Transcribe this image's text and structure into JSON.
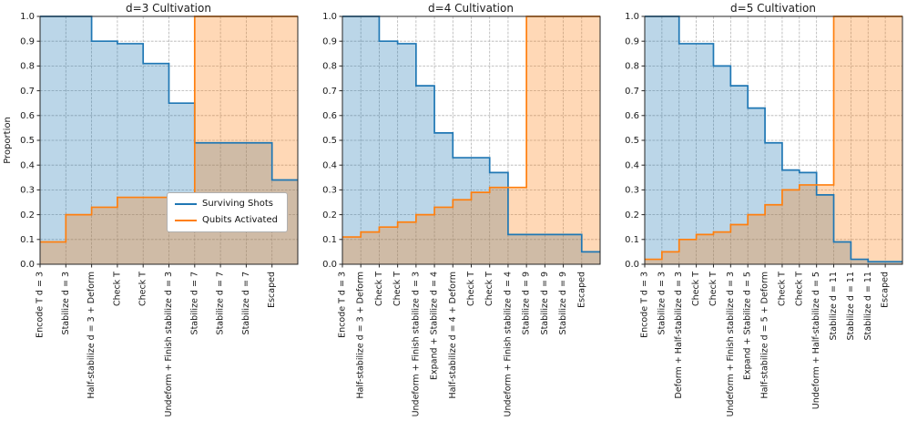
{
  "page": {
    "background": "#ffffff"
  },
  "colors": {
    "surviving": "#1f77b4",
    "activated": "#ff7f0e",
    "axis": "#262626",
    "grid": "#b4b4b4"
  },
  "legend": {
    "items": [
      {
        "label": "Surviving Shots",
        "color_key": "surviving"
      },
      {
        "label": "Qubits Activated",
        "color_key": "activated"
      }
    ],
    "location": "inside first panel, lower right"
  },
  "chart_data": [
    {
      "type": "area",
      "subtype": "step-post",
      "title": "d=3 Cultivation",
      "ylabel": "Proportion",
      "xlabel": "",
      "ylim": [
        0.0,
        1.0
      ],
      "yticks": [
        0.0,
        0.1,
        0.2,
        0.3,
        0.4,
        0.5,
        0.6,
        0.7,
        0.8,
        0.9,
        1.0
      ],
      "grid": true,
      "categories": [
        "Encode T d = 3",
        "Stabilize d = 3",
        "Half-stabilize d = 3 + Deform",
        "Check T",
        "Check T",
        "Undeform + Finish stabilize d = 3",
        "Stabilize d = 7",
        "Stabilize d = 7",
        "Stabilize d = 7",
        "Escaped"
      ],
      "series": [
        {
          "name": "Surviving Shots",
          "values": [
            1.0,
            1.0,
            0.9,
            0.89,
            0.81,
            0.65,
            0.49,
            0.49,
            0.49,
            0.34
          ]
        },
        {
          "name": "Qubits Activated",
          "values": [
            0.09,
            0.2,
            0.23,
            0.27,
            0.27,
            0.27,
            1.0,
            1.0,
            1.0,
            1.0
          ]
        }
      ]
    },
    {
      "type": "area",
      "subtype": "step-post",
      "title": "d=4 Cultivation",
      "ylabel": "",
      "xlabel": "",
      "ylim": [
        0.0,
        1.0
      ],
      "yticks": [
        0.0,
        0.1,
        0.2,
        0.3,
        0.4,
        0.5,
        0.6,
        0.7,
        0.8,
        0.9,
        1.0
      ],
      "grid": true,
      "categories": [
        "Encode T d = 3",
        "Half-stabilize d = 3 + Deform",
        "Check T",
        "Check T",
        "Undeform + Finish stabilize d = 3",
        "Expand + Stabilize d = 4",
        "Half-stabilize d = 4 + Deform",
        "Check T",
        "Check T",
        "Undeform + Finish stabilize d = 4",
        "Stabilize d = 9",
        "Stabilize d = 9",
        "Stabilize d = 9",
        "Escaped"
      ],
      "series": [
        {
          "name": "Surviving Shots",
          "values": [
            1.0,
            1.0,
            0.9,
            0.89,
            0.72,
            0.53,
            0.43,
            0.43,
            0.37,
            0.12,
            0.12,
            0.12,
            0.12,
            0.05
          ]
        },
        {
          "name": "Qubits Activated",
          "values": [
            0.11,
            0.13,
            0.15,
            0.17,
            0.2,
            0.23,
            0.26,
            0.29,
            0.31,
            0.31,
            1.0,
            1.0,
            1.0,
            1.0
          ]
        }
      ]
    },
    {
      "type": "area",
      "subtype": "step-post",
      "title": "d=5 Cultivation",
      "ylabel": "",
      "xlabel": "",
      "ylim": [
        0.0,
        1.0
      ],
      "yticks": [
        0.0,
        0.1,
        0.2,
        0.3,
        0.4,
        0.5,
        0.6,
        0.7,
        0.8,
        0.9,
        1.0
      ],
      "grid": true,
      "categories": [
        "Encode T d = 3",
        "Stabilize d = 3",
        "Deform + Half-stabilize d = 3",
        "Check T",
        "Check T",
        "Undeform + Finish stabilize d = 3",
        "Expand + Stabilize d = 5",
        "Half-stabilize d = 5 + Deform",
        "Check T",
        "Check T",
        "Undeform + Half-stabilize d = 5",
        "Stabilize d = 11",
        "Stabilize d = 11",
        "Stabilize d = 11",
        "Escaped"
      ],
      "series": [
        {
          "name": "Surviving Shots",
          "values": [
            1.0,
            1.0,
            0.89,
            0.89,
            0.8,
            0.72,
            0.63,
            0.49,
            0.38,
            0.37,
            0.28,
            0.09,
            0.02,
            0.01,
            0.01
          ]
        },
        {
          "name": "Qubits Activated",
          "values": [
            0.02,
            0.05,
            0.1,
            0.12,
            0.13,
            0.16,
            0.2,
            0.24,
            0.3,
            0.32,
            0.32,
            1.0,
            1.0,
            1.0,
            1.0
          ]
        }
      ]
    }
  ]
}
